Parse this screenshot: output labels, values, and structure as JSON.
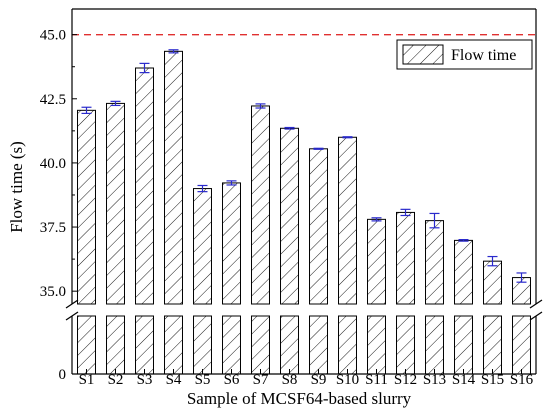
{
  "chart_data": {
    "type": "bar",
    "title": "",
    "xlabel": "Sample of MCSF64-based slurry",
    "ylabel": "Flow time (s)",
    "categories": [
      "S1",
      "S2",
      "S3",
      "S4",
      "S5",
      "S6",
      "S7",
      "S8",
      "S9",
      "S10",
      "S11",
      "S12",
      "S13",
      "S14",
      "S15",
      "S16"
    ],
    "series": [
      {
        "name": "Flow time",
        "values": [
          42.05,
          42.32,
          43.7,
          44.35,
          39.0,
          39.22,
          42.22,
          41.35,
          40.55,
          41.0,
          37.8,
          38.07,
          37.75,
          36.98,
          36.17,
          35.53
        ],
        "errors": [
          0.12,
          0.08,
          0.18,
          0.06,
          0.12,
          0.08,
          0.08,
          0.03,
          0.02,
          0.02,
          0.06,
          0.12,
          0.28,
          0.03,
          0.18,
          0.18
        ],
        "color": "#000000",
        "hatch": "diagonal"
      }
    ],
    "error_bar_color": "#2a2acc",
    "y_ticks": [
      "0",
      "35.0",
      "37.5",
      "40.0",
      "42.5",
      "45.0"
    ],
    "y_break": true,
    "upper_ylim": [
      34.5,
      46.0
    ],
    "lower_ylim": [
      0,
      1
    ],
    "reference_line": {
      "value": 45.0,
      "color": "#e03030",
      "style": "dashed"
    },
    "legend": {
      "label": "Flow time",
      "position": "top-right"
    },
    "grid": false
  }
}
